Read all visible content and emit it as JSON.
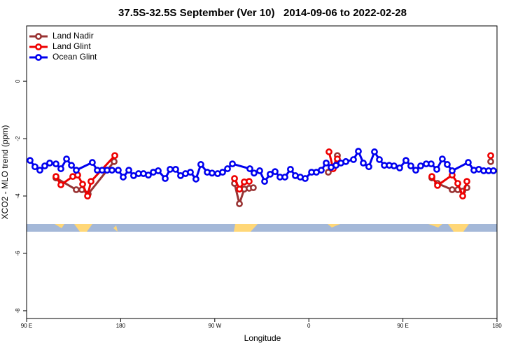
{
  "chart_data": {
    "type": "line",
    "title": "37.5S-32.5S September (Ver 10)   2014-09-06 to 2022-02-28",
    "xlabel": "Longitude",
    "ylabel": "XCO2 - MLO trend (ppm)",
    "xlim": [
      90,
      540
    ],
    "ylim": [
      -8.27,
      1.93
    ],
    "xticks": [
      {
        "value": 90,
        "label": "90 E"
      },
      180,
      {
        "value": 270,
        "label": "90 W"
      },
      {
        "value": 360,
        "label": "0"
      },
      {
        "value": 450,
        "label": "90 E"
      },
      {
        "value": 540,
        "label": "180"
      }
    ],
    "yticks": [
      0,
      -2,
      -4,
      -6,
      -8
    ],
    "legend": "top-left",
    "series": [
      {
        "name": "Land Nadir",
        "color": "#993333",
        "x": [
          118.1,
          137.5,
          142.9,
          148.9,
          173.7,
          null,
          288.9,
          293.6,
          298.2,
          302.9,
          306.9,
          null,
          378.6,
          383.3,
          387.3,
          null,
          477.7,
          483.1,
          497.1,
          502.5,
          507.2,
          511.2,
          null,
          534.0
        ],
        "values": [
          -3.37,
          -3.78,
          -3.78,
          -3.93,
          -2.8,
          null,
          -3.56,
          -4.27,
          -3.76,
          -3.73,
          -3.71,
          null,
          -3.17,
          -3.02,
          -2.59,
          null,
          -3.37,
          -3.56,
          -3.78,
          -3.78,
          -3.83,
          -3.71,
          null,
          -2.8
        ]
      },
      {
        "name": "Land Glint",
        "color": "#ee0000",
        "x": [
          118.1,
          122.8,
          134.2,
          138.9,
          143.6,
          148.3,
          151.6,
          174.4,
          null,
          288.9,
          293.6,
          298.2,
          302.9,
          null,
          379.3,
          383.3,
          387.3,
          null,
          477.7,
          483.1,
          497.1,
          502.5,
          507.2,
          511.2,
          null,
          534.0
        ],
        "values": [
          -3.32,
          -3.61,
          -3.32,
          -3.27,
          -3.59,
          -4.0,
          -3.49,
          -2.59,
          null,
          -3.39,
          -3.76,
          -3.51,
          -3.49,
          null,
          -2.46,
          -3.05,
          -2.71,
          null,
          -3.32,
          -3.63,
          -3.27,
          -3.56,
          -4.0,
          -3.49,
          null,
          -2.59
        ]
      },
      {
        "name": "Ocean Glint",
        "color": "#0000ee",
        "x": [
          93.3,
          98.0,
          102.7,
          107.4,
          112.1,
          118.1,
          122.8,
          128.2,
          132.9,
          137.5,
          152.9,
          157.6,
          162.3,
          167.0,
          171.7,
          177.7,
          182.4,
          187.8,
          192.4,
          197.1,
          201.8,
          206.5,
          211.2,
          215.9,
          222.6,
          227.3,
          232.6,
          237.3,
          242.0,
          246.7,
          252.0,
          256.7,
          262.8,
          267.4,
          272.8,
          277.5,
          282.2,
          286.9,
          303.6,
          307.6,
          313.0,
          317.7,
          323.0,
          327.7,
          332.4,
          337.1,
          342.4,
          347.1,
          351.8,
          356.5,
          362.6,
          367.2,
          371.9,
          376.6,
          381.3,
          386.0,
          390.7,
          395.4,
          402.7,
          407.4,
          412.1,
          417.4,
          422.8,
          427.5,
          432.2,
          436.9,
          441.5,
          446.9,
          452.9,
          457.6,
          462.3,
          467.0,
          472.3,
          477.0,
          482.4,
          487.7,
          492.4,
          497.1,
          512.5,
          517.9,
          522.6,
          527.3,
          532.0,
          536.6
        ],
        "values": [
          -2.76,
          -2.98,
          -3.1,
          -2.95,
          -2.85,
          -2.88,
          -3.05,
          -2.71,
          -2.93,
          -3.1,
          -2.83,
          -3.1,
          -3.1,
          -3.1,
          -3.1,
          -3.1,
          -3.34,
          -3.1,
          -3.29,
          -3.22,
          -3.22,
          -3.27,
          -3.17,
          -3.12,
          -3.39,
          -3.07,
          -3.07,
          -3.29,
          -3.22,
          -3.17,
          -3.41,
          -2.9,
          -3.17,
          -3.2,
          -3.22,
          -3.17,
          -3.05,
          -2.88,
          -3.05,
          -3.2,
          -3.12,
          -3.49,
          -3.24,
          -3.15,
          -3.34,
          -3.34,
          -3.07,
          -3.29,
          -3.34,
          -3.39,
          -3.17,
          -3.17,
          -3.1,
          -2.85,
          -3.0,
          -2.93,
          -2.85,
          -2.8,
          -2.73,
          -2.44,
          -2.85,
          -2.98,
          -2.46,
          -2.73,
          -2.93,
          -2.93,
          -2.95,
          -3.02,
          -2.76,
          -2.95,
          -3.1,
          -2.95,
          -2.88,
          -2.88,
          -3.07,
          -2.71,
          -2.9,
          -3.12,
          -2.83,
          -3.1,
          -3.07,
          -3.12,
          -3.12,
          -3.12
        ]
      }
    ]
  }
}
